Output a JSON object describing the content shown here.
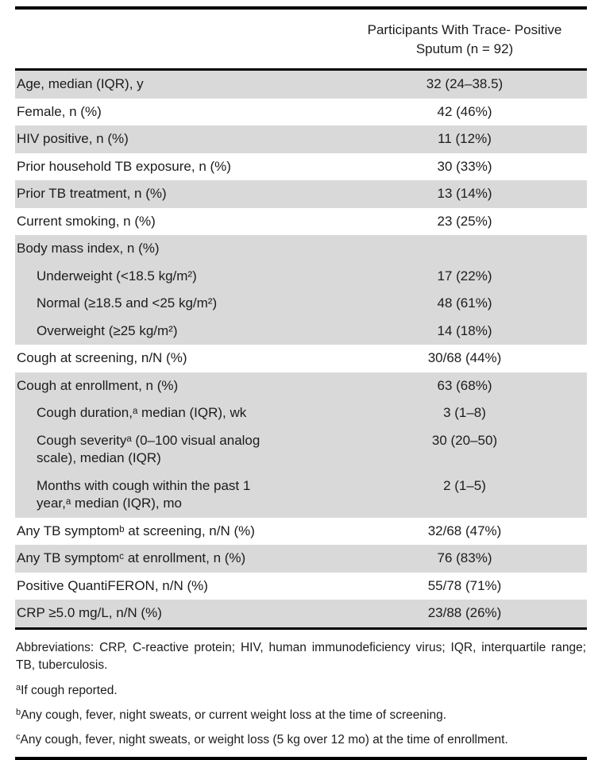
{
  "table": {
    "column_header": "Participants With Trace- Positive\nSputum (n = 92)",
    "rows": [
      {
        "label": "Age, median (IQR), y",
        "value": "32 (24–38.5)"
      },
      {
        "label": "Female, n (%)",
        "value": "42 (46%)"
      },
      {
        "label": "HIV positive, n (%)",
        "value": "11 (12%)"
      },
      {
        "label": "Prior household TB exposure, n (%)",
        "value": "30 (33%)"
      },
      {
        "label": "Prior TB treatment, n (%)",
        "value": "13 (14%)"
      },
      {
        "label": "Current smoking, n (%)",
        "value": "23 (25%)"
      },
      {
        "label": "Body mass index, n (%)",
        "value": ""
      },
      {
        "label": "Underweight (<18.5 kg/m²)",
        "value": "17 (22%)"
      },
      {
        "label": "Normal (≥18.5 and <25 kg/m²)",
        "value": "48 (61%)"
      },
      {
        "label": "Overweight (≥25 kg/m²)",
        "value": "14 (18%)"
      },
      {
        "label": "Cough at screening, n/N (%)",
        "value": "30/68 (44%)"
      },
      {
        "label": "Cough at enrollment, n (%)",
        "value": "63 (68%)"
      },
      {
        "label": "Cough duration,ᵃ median (IQR), wk",
        "value": "3 (1–8)"
      },
      {
        "label": "Cough severityᵃ (0–100 visual analog\nscale), median (IQR)",
        "value": "30 (20–50)"
      },
      {
        "label": "Months with cough within the past 1\nyear,ᵃ median (IQR), mo",
        "value": "2 (1–5)"
      },
      {
        "label": "Any TB symptomᵇ at screening, n/N (%)",
        "value": "32/68 (47%)"
      },
      {
        "label": "Any TB symptomᶜ at enrollment, n (%)",
        "value": "76 (83%)"
      },
      {
        "label": "Positive QuantiFERON, n/N (%)",
        "value": "55/78 (71%)"
      },
      {
        "label": "CRP ≥5.0 mg/L, n/N (%)",
        "value": "23/88 (26%)"
      }
    ]
  },
  "footnotes": {
    "abbreviations": "Abbreviations: CRP, C-reactive protein; HIV, human immunodeficiency virus; IQR, interquartile range; TB, tuberculosis.",
    "notes": [
      {
        "marker": "a",
        "text": "If cough reported."
      },
      {
        "marker": "b",
        "text": "Any cough, fever, night sweats, or current weight loss at the time of screening."
      },
      {
        "marker": "c",
        "text": "Any cough, fever, night sweats, or weight loss (5 kg over 12 mo) at the time of enrollment."
      }
    ]
  },
  "colors": {
    "row_shade": "#d9d9d9",
    "rule": "#000000",
    "text": "#1c1c1c"
  }
}
